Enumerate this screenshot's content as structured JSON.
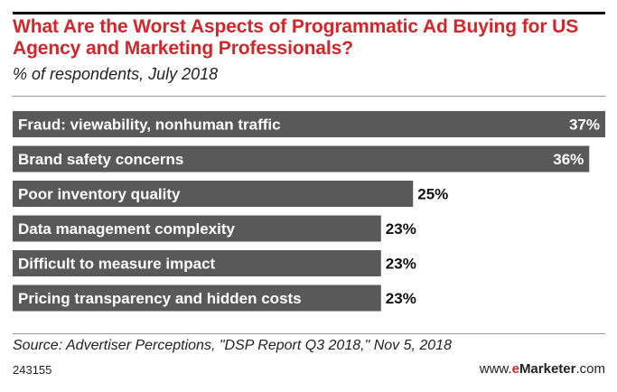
{
  "header": {
    "title": "What Are the Worst Aspects of Programmatic Ad Buying for US Agency and Marketing Professionals?",
    "subtitle": "% of respondents, July 2018"
  },
  "footer": {
    "source": "Source: Advertiser Perceptions, \"DSP Report Q3 2018,\" Nov 5, 2018",
    "chart_id": "243155",
    "brand_prefix": "www.",
    "brand_em": "e",
    "brand_name": "Marketer",
    "brand_suffix": ".com"
  },
  "colors": {
    "title": "#d3262a",
    "bar": "#595959",
    "bar_label": "#ffffff",
    "value_outside": "#111111",
    "value_inside": "#ffffff"
  },
  "chart_data": {
    "type": "bar",
    "orientation": "horizontal",
    "categories": [
      "Fraud: viewability, nonhuman traffic",
      "Brand safety concerns",
      "Poor inventory quality",
      "Data management complexity",
      "Difficult to measure impact",
      "Pricing transparency and hidden costs"
    ],
    "values": [
      37,
      36,
      25,
      23,
      23,
      23
    ],
    "value_labels": [
      "37%",
      "36%",
      "25%",
      "23%",
      "23%",
      "23%"
    ],
    "unit": "%",
    "xlim": [
      0,
      37
    ],
    "grid": false,
    "legend": "none"
  }
}
